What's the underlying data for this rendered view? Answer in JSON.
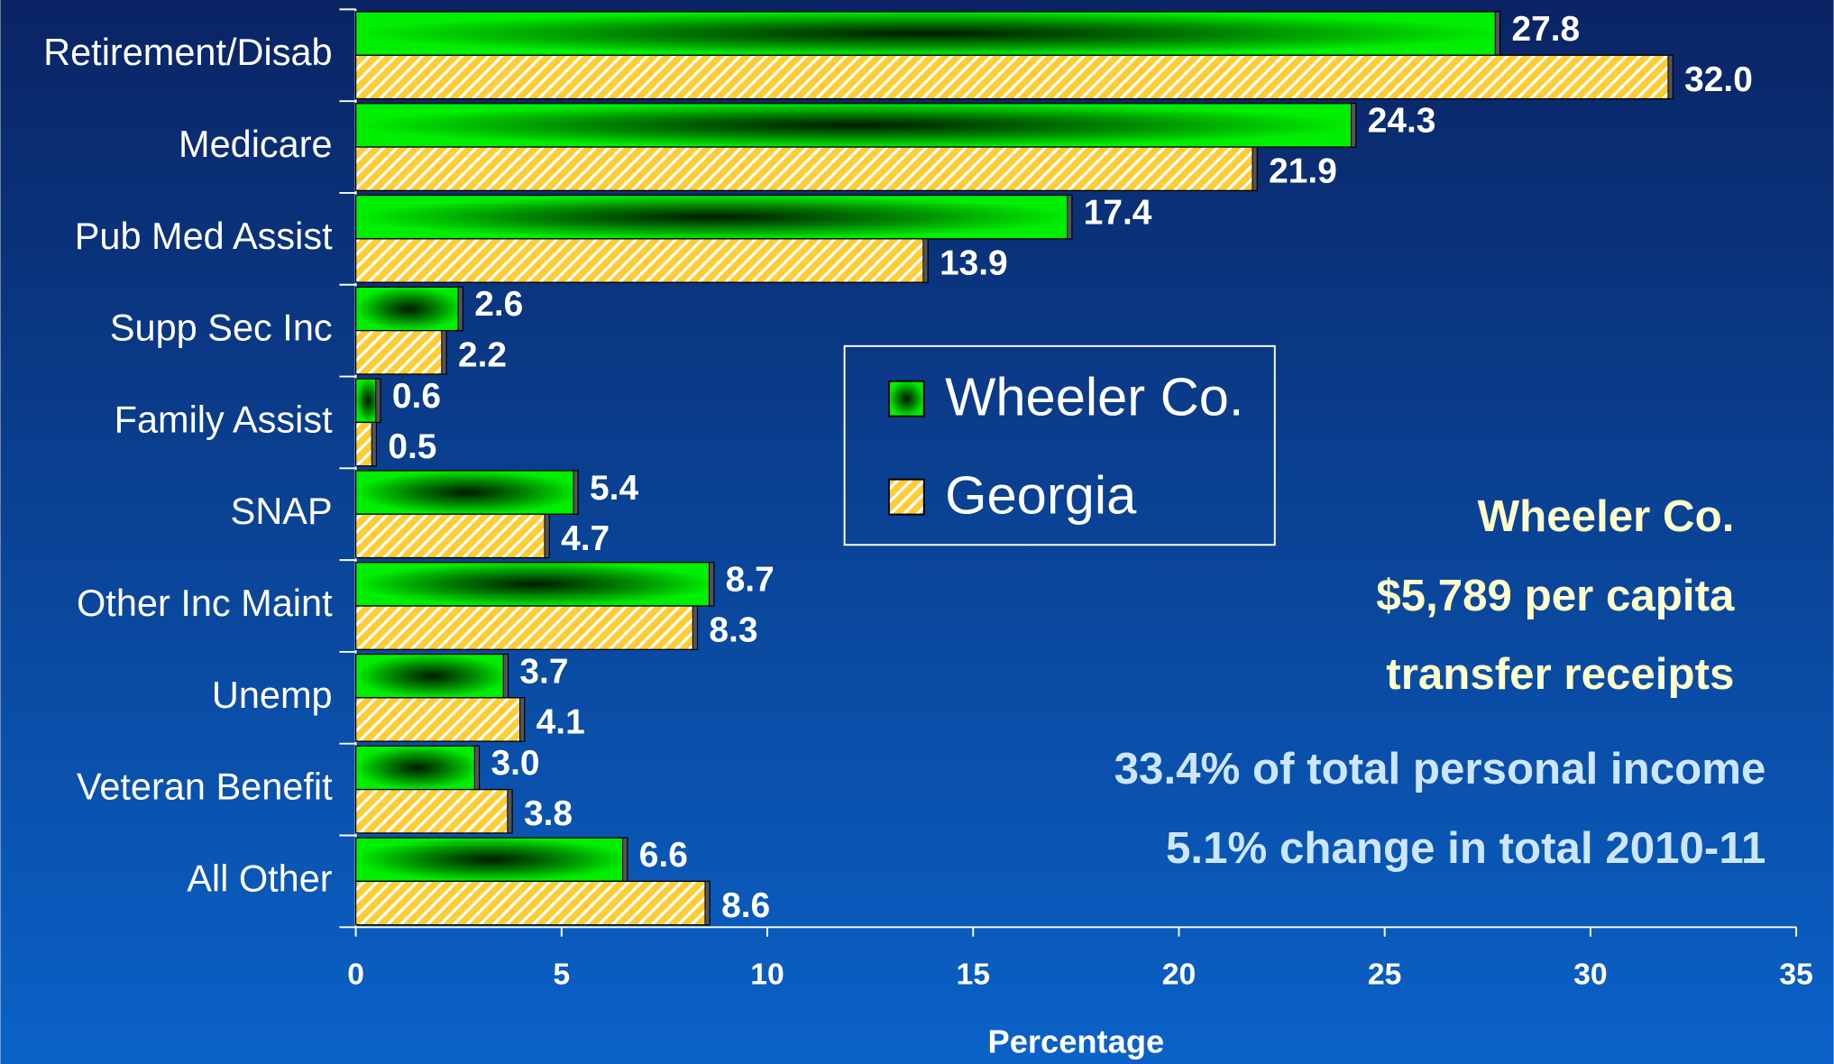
{
  "chart_data": {
    "type": "hbar",
    "categories": [
      "Retirement/Disab",
      "Medicare",
      "Pub Med Assist",
      "Supp Sec Inc",
      "Family Assist",
      "SNAP",
      "Other Inc Maint",
      "Unemp",
      "Veteran Benefit",
      "All Other"
    ],
    "series": [
      {
        "name": "Wheeler Co.",
        "color": "#00e000",
        "values": [
          27.8,
          24.3,
          17.4,
          2.6,
          0.6,
          5.4,
          8.7,
          3.7,
          3.0,
          6.6
        ],
        "value_labels": [
          "27.8",
          "24.3",
          "17.4",
          "2.6",
          "0.6",
          "5.4",
          "8.7",
          "3.7",
          "3.0",
          "6.6"
        ]
      },
      {
        "name": "Georgia",
        "color": "#ffcc33",
        "values": [
          32.0,
          21.9,
          13.9,
          2.2,
          0.5,
          4.7,
          8.3,
          4.1,
          3.8,
          8.6
        ],
        "value_labels": [
          "32.0",
          "21.9",
          "13.9",
          "2.2",
          "0.5",
          "4.7",
          "8.3",
          "4.1",
          "3.8",
          "8.6"
        ]
      }
    ],
    "xlim": [
      0,
      35
    ],
    "xticks": [
      0,
      5,
      10,
      15,
      20,
      25,
      30,
      35
    ],
    "x_label": "Percentage",
    "annotations": [
      "Wheeler Co.",
      "$5,789 per capita",
      "transfer receipts",
      "33.4% of total personal income",
      "5.1% change in total 2010-11"
    ]
  }
}
